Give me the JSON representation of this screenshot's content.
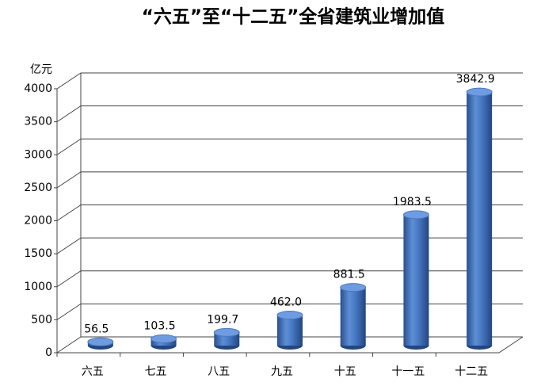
{
  "chart_data": {
    "type": "bar",
    "title": "“六五”至“十二五”全省建筑业增加值",
    "y_label": "亿元",
    "categories": [
      "六五",
      "七五",
      "八五",
      "九五",
      "十五",
      "十一五",
      "十二五"
    ],
    "values": [
      56.5,
      103.5,
      199.7,
      462.0,
      881.5,
      1983.5,
      3842.9
    ],
    "value_labels": [
      "56.5",
      "103.5",
      "199.7",
      "462.0",
      "881.5",
      "1983.5",
      "3842.9"
    ],
    "color": "#4472c4",
    "ylim": [
      0,
      4000
    ],
    "yticks": [
      0,
      500,
      1000,
      1500,
      2000,
      2500,
      3000,
      3500,
      4000
    ],
    "grid": true
  }
}
